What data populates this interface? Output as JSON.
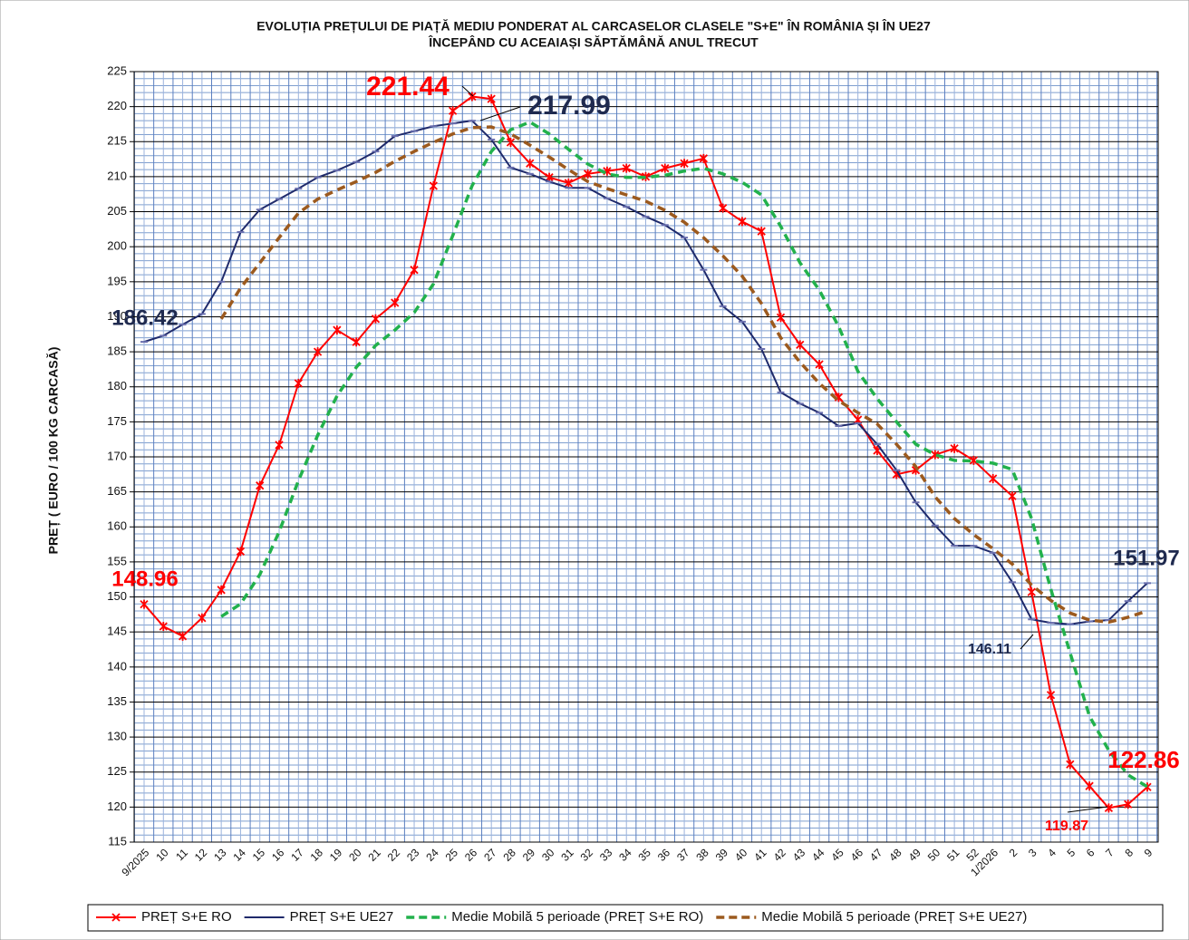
{
  "chart_data": {
    "type": "line",
    "title": [
      "EVOLUȚIA PREȚULUI DE PIAȚĂ MEDIU PONDERAT AL CARCASELOR CLASELE \"S+E\" ÎN ROMÂNIA ȘI ÎN UE27",
      "ÎNCEPÂND CU ACEAIAȘI SĂPTĂMÂNĂ ANUL TRECUT"
    ],
    "y_label": "PREȚ ( EURO / 100 KG CARCASĂ)",
    "categories": [
      "9/2025",
      "10",
      "11",
      "12",
      "13",
      "14",
      "15",
      "16",
      "17",
      "18",
      "19",
      "20",
      "21",
      "22",
      "23",
      "24",
      "25",
      "26",
      "27",
      "28",
      "29",
      "30",
      "31",
      "32",
      "33",
      "34",
      "35",
      "36",
      "37",
      "38",
      "39",
      "40",
      "41",
      "42",
      "43",
      "44",
      "45",
      "46",
      "47",
      "48",
      "49",
      "50",
      "51",
      "52",
      "1/2026",
      "2",
      "3",
      "4",
      "5",
      "6",
      "7",
      "8",
      "9"
    ],
    "ylim": [
      115,
      225
    ],
    "yticks": [
      115,
      120,
      125,
      130,
      135,
      140,
      145,
      150,
      155,
      160,
      165,
      170,
      175,
      180,
      185,
      190,
      195,
      200,
      205,
      210,
      215,
      220,
      225
    ],
    "grid": true,
    "legend": "bottom",
    "series": [
      {
        "name": "PREȚ S+E RO",
        "color": "#ff0000",
        "style": "solid",
        "marker": "star",
        "values": [
          148.96,
          145.8,
          144.4,
          147.0,
          151.0,
          156.5,
          165.9,
          171.7,
          180.5,
          185.0,
          188.1,
          186.4,
          189.7,
          192.0,
          196.7,
          208.7,
          219.4,
          221.44,
          221.1,
          214.9,
          211.9,
          209.9,
          209.1,
          210.4,
          210.8,
          211.2,
          210.0,
          211.2,
          211.9,
          212.6,
          205.5,
          203.6,
          202.2,
          189.9,
          186.0,
          183.2,
          178.5,
          175.3,
          170.9,
          167.5,
          168.1,
          170.3,
          171.2,
          169.5,
          166.9,
          164.4,
          150.7,
          136.0,
          126.1,
          123.0,
          119.87,
          120.4,
          122.86
        ]
      },
      {
        "name": "PREȚ S+E UE27",
        "color": "#1f2a6b",
        "style": "solid",
        "marker": "dash",
        "values": [
          186.42,
          187.3,
          188.9,
          190.4,
          195.0,
          202.1,
          205.3,
          206.8,
          208.3,
          209.9,
          210.9,
          212.1,
          213.6,
          215.8,
          216.5,
          217.2,
          217.6,
          217.99,
          215.3,
          211.3,
          210.4,
          209.3,
          208.4,
          208.4,
          206.9,
          205.7,
          204.3,
          203.1,
          201.3,
          196.7,
          191.5,
          189.3,
          185.4,
          179.2,
          177.6,
          176.3,
          174.4,
          174.8,
          171.8,
          168.1,
          163.5,
          160.2,
          157.3,
          157.3,
          156.3,
          152.1,
          146.8,
          146.3,
          146.11,
          146.5,
          146.7,
          149.4,
          151.97
        ]
      },
      {
        "name": "Medie Mobilă 5 perioade (PREȚ S+E RO)",
        "color": "#22b14c",
        "style": "dashed",
        "values": [
          null,
          null,
          null,
          null,
          147.2,
          149.0,
          153.2,
          159.3,
          166.6,
          173.1,
          178.7,
          182.8,
          185.9,
          188.1,
          190.6,
          194.7,
          201.6,
          208.7,
          213.6,
          216.7,
          217.8,
          216.1,
          213.9,
          211.8,
          210.4,
          209.9,
          209.9,
          210.2,
          210.8,
          211.2,
          210.4,
          209.2,
          207.4,
          202.9,
          197.7,
          193.8,
          188.6,
          182.2,
          178.3,
          175.0,
          171.8,
          170.3,
          169.5,
          169.4,
          169.1,
          168.2,
          161.2,
          151.1,
          142.0,
          133.0,
          128.1,
          124.6,
          122.9
        ]
      },
      {
        "name": "Medie Mobilă 5 perioade (PREȚ S+E UE27)",
        "color": "#9c5a1e",
        "style": "dashed",
        "values": [
          null,
          null,
          null,
          null,
          189.7,
          194.1,
          197.7,
          201.3,
          204.8,
          206.8,
          208.1,
          209.3,
          210.6,
          212.2,
          213.6,
          214.9,
          216.1,
          217.0,
          217.1,
          216.1,
          214.5,
          212.8,
          211.0,
          209.3,
          208.3,
          207.4,
          206.5,
          205.2,
          203.5,
          201.3,
          198.7,
          195.8,
          191.9,
          187.0,
          183.5,
          180.5,
          178.0,
          176.3,
          174.7,
          171.8,
          168.6,
          164.3,
          161.2,
          158.9,
          156.9,
          154.7,
          151.7,
          149.5,
          147.7,
          146.7,
          146.4,
          147.1,
          148.0
        ]
      }
    ]
  }
}
